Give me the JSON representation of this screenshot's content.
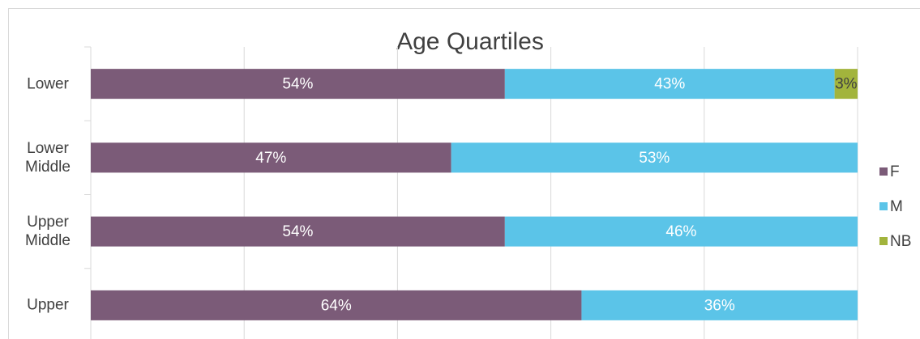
{
  "chart_data": {
    "type": "stacked_bar_horizontal",
    "title": "Age Quartiles",
    "categories": [
      "Lower",
      "Lower Middle",
      "Upper Middle",
      "Upper"
    ],
    "series": [
      {
        "name": "F",
        "color": "#7b5b78",
        "values": [
          54,
          47,
          54,
          64
        ],
        "value_labels": [
          "54%",
          "47%",
          "54%",
          "64%"
        ]
      },
      {
        "name": "M",
        "color": "#5bc4e8",
        "values": [
          43,
          53,
          46,
          36
        ],
        "value_labels": [
          "43%",
          "53%",
          "46%",
          "36%"
        ]
      },
      {
        "name": "NB",
        "color": "#a2b43c",
        "values": [
          3,
          null,
          null,
          null
        ],
        "value_labels": [
          "3%",
          null,
          null,
          null
        ]
      }
    ],
    "xlim": [
      0,
      100
    ],
    "xticks": [
      0,
      20,
      40,
      60,
      80,
      100
    ],
    "grid": true,
    "legend": "right"
  }
}
